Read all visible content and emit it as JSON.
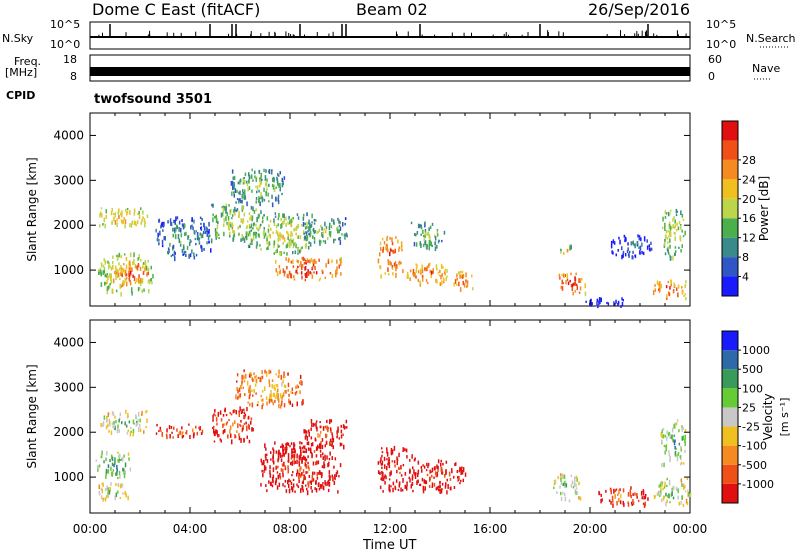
{
  "header": {
    "station": "Dome C East (fitACF)",
    "beam": "Beam 02",
    "date": "26/Sep/2016"
  },
  "side_labels": {
    "nsky": "N.Sky",
    "freq_line1": "Freq.",
    "freq_line2": "[MHz]",
    "cpid": "CPID",
    "nsearch": "N.Search",
    "nave": "Nave"
  },
  "nsky_axis": {
    "top": "10^5",
    "bottom": "10^0"
  },
  "freq_axis": {
    "top": "18",
    "bottom": "8"
  },
  "nave_axis": {
    "top": "60",
    "bottom": "0"
  },
  "cpid_text": "twofsound 3501",
  "time_axis": {
    "label": "Time UT",
    "ticks": [
      "00:00",
      "04:00",
      "08:00",
      "12:00",
      "16:00",
      "20:00",
      "00:00"
    ]
  },
  "chart_data": [
    {
      "type": "heatmap",
      "name": "power-panel",
      "ylabel": "Slant Range [km]",
      "yticks": [
        "1000",
        "2000",
        "3000",
        "4000"
      ],
      "ylim": [
        200,
        4500
      ],
      "xlim_hours": [
        0,
        24
      ],
      "colorbar": {
        "label": "Power [dB]",
        "ticks": [
          "4",
          "8",
          "12",
          "16",
          "20",
          "24",
          "28"
        ],
        "range": [
          0,
          32
        ],
        "colors": [
          "#1a1aff",
          "#2f55c6",
          "#3a8a8a",
          "#4bb04b",
          "#bcd64b",
          "#f0c020",
          "#f58a20",
          "#f05018",
          "#e01010"
        ]
      },
      "regions": [
        {
          "t0": 0.3,
          "t1": 2.3,
          "r0": 2000,
          "r1": 2400,
          "level": 0.75
        },
        {
          "t0": 0.3,
          "t1": 2.5,
          "r0": 500,
          "r1": 1400,
          "level": 0.7
        },
        {
          "t0": 1.0,
          "t1": 2.4,
          "r0": 800,
          "r1": 1200,
          "level": 0.9
        },
        {
          "t0": 2.6,
          "t1": 4.8,
          "r0": 1300,
          "r1": 2200,
          "level": 0.4
        },
        {
          "t0": 4.8,
          "t1": 7.0,
          "r0": 1700,
          "r1": 2500,
          "level": 0.6
        },
        {
          "t0": 5.5,
          "t1": 7.8,
          "r0": 2500,
          "r1": 3300,
          "level": 0.5
        },
        {
          "t0": 6.3,
          "t1": 9.0,
          "r0": 1400,
          "r1": 2300,
          "level": 0.6
        },
        {
          "t0": 7.4,
          "t1": 10.2,
          "r0": 800,
          "r1": 1300,
          "level": 0.95
        },
        {
          "t0": 8.5,
          "t1": 10.3,
          "r0": 1600,
          "r1": 2200,
          "level": 0.5
        },
        {
          "t0": 11.5,
          "t1": 12.5,
          "r0": 900,
          "r1": 1800,
          "level": 0.9
        },
        {
          "t0": 12.6,
          "t1": 14.3,
          "r0": 700,
          "r1": 1200,
          "level": 0.85
        },
        {
          "t0": 12.8,
          "t1": 14.2,
          "r0": 1500,
          "r1": 2100,
          "level": 0.5
        },
        {
          "t0": 14.5,
          "t1": 15.3,
          "r0": 600,
          "r1": 1000,
          "level": 0.85
        },
        {
          "t0": 18.7,
          "t1": 19.8,
          "r0": 500,
          "r1": 1000,
          "level": 0.95
        },
        {
          "t0": 18.8,
          "t1": 19.3,
          "r0": 1300,
          "r1": 1600,
          "level": 0.65
        },
        {
          "t0": 19.8,
          "t1": 21.5,
          "r0": 200,
          "r1": 400,
          "level": 0.2
        },
        {
          "t0": 20.8,
          "t1": 22.5,
          "r0": 1300,
          "r1": 1800,
          "level": 0.3
        },
        {
          "t0": 22.5,
          "t1": 23.9,
          "r0": 400,
          "r1": 800,
          "level": 0.9
        },
        {
          "t0": 22.8,
          "t1": 23.8,
          "r0": 1300,
          "r1": 2400,
          "level": 0.6
        }
      ]
    },
    {
      "type": "heatmap",
      "name": "velocity-panel",
      "ylabel": "Slant Range [km]",
      "yticks": [
        "1000",
        "2000",
        "3000",
        "4000"
      ],
      "ylim": [
        200,
        4500
      ],
      "xlim_hours": [
        0,
        24
      ],
      "colorbar": {
        "label": "Velocity",
        "label_unit": "[m s⁻¹]",
        "ticks": [
          "-1000",
          "-500",
          "-100",
          "-25",
          "25",
          "100",
          "500",
          "1000"
        ],
        "colors": [
          "#e01010",
          "#f05018",
          "#f58a20",
          "#f0c020",
          "#c8c8c8",
          "#66cc33",
          "#3a9a5a",
          "#2f6aa8",
          "#1a1aff"
        ]
      },
      "regions": [
        {
          "t0": 0.2,
          "t1": 1.5,
          "r0": 500,
          "r1": 900,
          "level": 0.65
        },
        {
          "t0": 0.2,
          "t1": 1.6,
          "r0": 1000,
          "r1": 1600,
          "level": 0.8
        },
        {
          "t0": 0.4,
          "t1": 2.3,
          "r0": 2000,
          "r1": 2500,
          "level": 0.7
        },
        {
          "t0": 2.6,
          "t1": 4.5,
          "r0": 1900,
          "r1": 2200,
          "level": 0.28
        },
        {
          "t0": 4.8,
          "t1": 6.5,
          "r0": 1800,
          "r1": 2600,
          "level": 0.25
        },
        {
          "t0": 5.8,
          "t1": 8.5,
          "r0": 2600,
          "r1": 3400,
          "level": 0.45
        },
        {
          "t0": 6.8,
          "t1": 10.0,
          "r0": 700,
          "r1": 1800,
          "level": 0.18
        },
        {
          "t0": 7.5,
          "t1": 9.0,
          "r0": 1300,
          "r1": 1800,
          "level": 0.05
        },
        {
          "t0": 8.5,
          "t1": 10.3,
          "r0": 1700,
          "r1": 2300,
          "level": 0.22
        },
        {
          "t0": 11.5,
          "t1": 13.0,
          "r0": 700,
          "r1": 1700,
          "level": 0.15
        },
        {
          "t0": 13.0,
          "t1": 15.0,
          "r0": 700,
          "r1": 1400,
          "level": 0.2
        },
        {
          "t0": 18.5,
          "t1": 19.6,
          "r0": 500,
          "r1": 1100,
          "level": 0.7
        },
        {
          "t0": 20.3,
          "t1": 22.3,
          "r0": 400,
          "r1": 800,
          "level": 0.28
        },
        {
          "t0": 22.5,
          "t1": 24.0,
          "r0": 400,
          "r1": 1000,
          "level": 0.68
        },
        {
          "t0": 22.8,
          "t1": 23.8,
          "r0": 1300,
          "r1": 2300,
          "level": 0.75
        }
      ]
    }
  ]
}
